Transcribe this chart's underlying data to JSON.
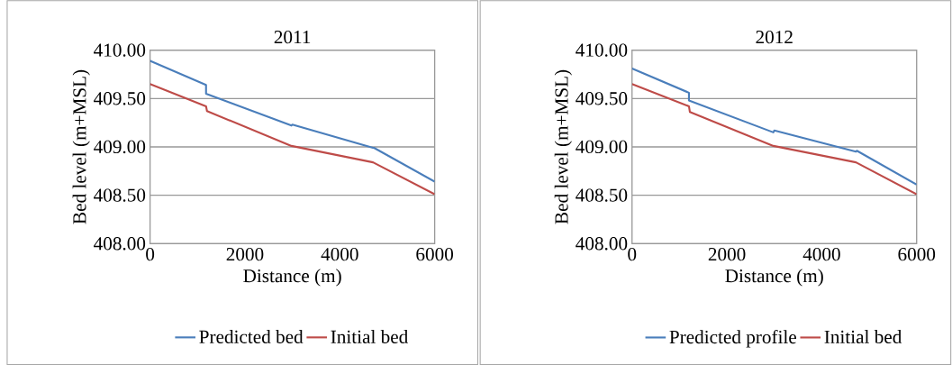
{
  "chart_data": [
    {
      "type": "line",
      "title": "2011",
      "xlabel": "Distance (m)",
      "ylabel": "Bed level (m+MSL)",
      "xlim": [
        0,
        6000
      ],
      "ylim": [
        408,
        410
      ],
      "xticks": [
        0,
        2000,
        4000,
        6000
      ],
      "yticks": [
        {
          "value": 408,
          "label": "408.00"
        },
        {
          "value": 408.5,
          "label": "408.50"
        },
        {
          "value": 409,
          "label": "409.00"
        },
        {
          "value": 409.5,
          "label": "409.50"
        },
        {
          "value": 410,
          "label": "410.00"
        }
      ],
      "grid": "y",
      "legend": "bottom",
      "series": [
        {
          "name": "Predicted bed",
          "color": "#4a7ebb",
          "x": [
            0,
            1180,
            1180,
            2980,
            3000,
            4700,
            4720,
            6000
          ],
          "values": [
            409.89,
            409.64,
            409.55,
            409.22,
            409.23,
            408.99,
            408.99,
            408.64
          ]
        },
        {
          "name": "Initial bed",
          "color": "#be4b48",
          "x": [
            0,
            1180,
            1200,
            2980,
            4700,
            6000
          ],
          "values": [
            409.65,
            409.42,
            409.37,
            409.01,
            408.84,
            408.51
          ]
        }
      ]
    },
    {
      "type": "line",
      "title": "2012",
      "xlabel": "Distance (m)",
      "ylabel": "Bed level (m+MSL)",
      "xlim": [
        0,
        6000
      ],
      "ylim": [
        408,
        410
      ],
      "xticks": [
        0,
        2000,
        4000,
        6000
      ],
      "yticks": [
        {
          "value": 408,
          "label": "408.00"
        },
        {
          "value": 408.5,
          "label": "408.50"
        },
        {
          "value": 409,
          "label": "409.00"
        },
        {
          "value": 409.5,
          "label": "409.50"
        },
        {
          "value": 410,
          "label": "410.00"
        }
      ],
      "grid": "y",
      "legend": "bottom",
      "series": [
        {
          "name": "Predicted profile",
          "color": "#4a7ebb",
          "x": [
            0,
            1200,
            1200,
            2980,
            3000,
            4720,
            4740,
            6000
          ],
          "values": [
            409.81,
            409.56,
            409.48,
            409.15,
            409.17,
            408.95,
            408.96,
            408.61
          ]
        },
        {
          "name": "Initial bed",
          "color": "#be4b48",
          "x": [
            0,
            1200,
            1220,
            2980,
            4720,
            6000
          ],
          "values": [
            409.65,
            409.42,
            409.36,
            409.01,
            408.84,
            408.51
          ]
        }
      ]
    }
  ]
}
